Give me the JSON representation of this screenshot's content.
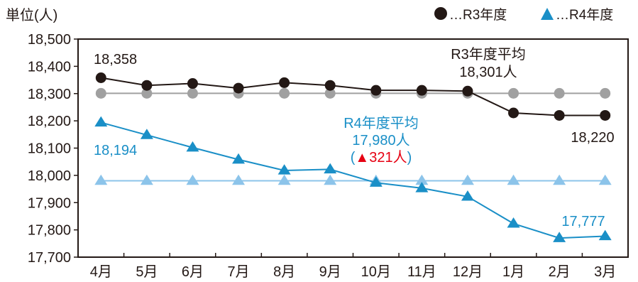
{
  "chart_data": {
    "type": "line",
    "unit_label": "単位(人)",
    "categories": [
      "4月",
      "5月",
      "6月",
      "7月",
      "8月",
      "9月",
      "10月",
      "11月",
      "12月",
      "1月",
      "2月",
      "3月"
    ],
    "ylim": [
      17700,
      18500
    ],
    "yticks": [
      18500,
      18400,
      18300,
      18200,
      18100,
      18000,
      17900,
      17800,
      17700
    ],
    "ytick_labels": [
      "18,500",
      "18,400",
      "18,300",
      "18,200",
      "18,100",
      "18,000",
      "17,900",
      "17,800",
      "17,700"
    ],
    "grid": false,
    "legend_placement": "top-right",
    "series": [
      {
        "name": "…R3年度",
        "marker": "circle",
        "color": "#231815",
        "values": [
          18358,
          18330,
          18337,
          18320,
          18340,
          18330,
          18312,
          18312,
          18309,
          18229,
          18220,
          18220
        ]
      },
      {
        "name": "…R4年度",
        "marker": "triangle",
        "color": "#1a8fc7",
        "values": [
          18194,
          18148,
          18102,
          18058,
          18018,
          18022,
          17973,
          17953,
          17922,
          17823,
          17770,
          17777
        ]
      }
    ],
    "averages": [
      {
        "series": "R3",
        "value": 18301,
        "marker": "circle",
        "color": "#a0a0a0"
      },
      {
        "series": "R4",
        "value": 17980,
        "marker": "triangle",
        "color": "#8cc4ea"
      }
    ],
    "annotations": {
      "r3_start": "18,358",
      "r3_end": "18,220",
      "r4_start": "18,194",
      "r4_end": "17,777",
      "r3_avg_line1": "R3年度平均",
      "r3_avg_line2": "18,301人",
      "r4_avg_line1": "R4年度平均",
      "r4_avg_line2": "17,980人",
      "r4_diff_open": "(",
      "r4_diff_value": "▲321人",
      "r4_diff_close": ")",
      "diff_color": "#e60012"
    }
  }
}
